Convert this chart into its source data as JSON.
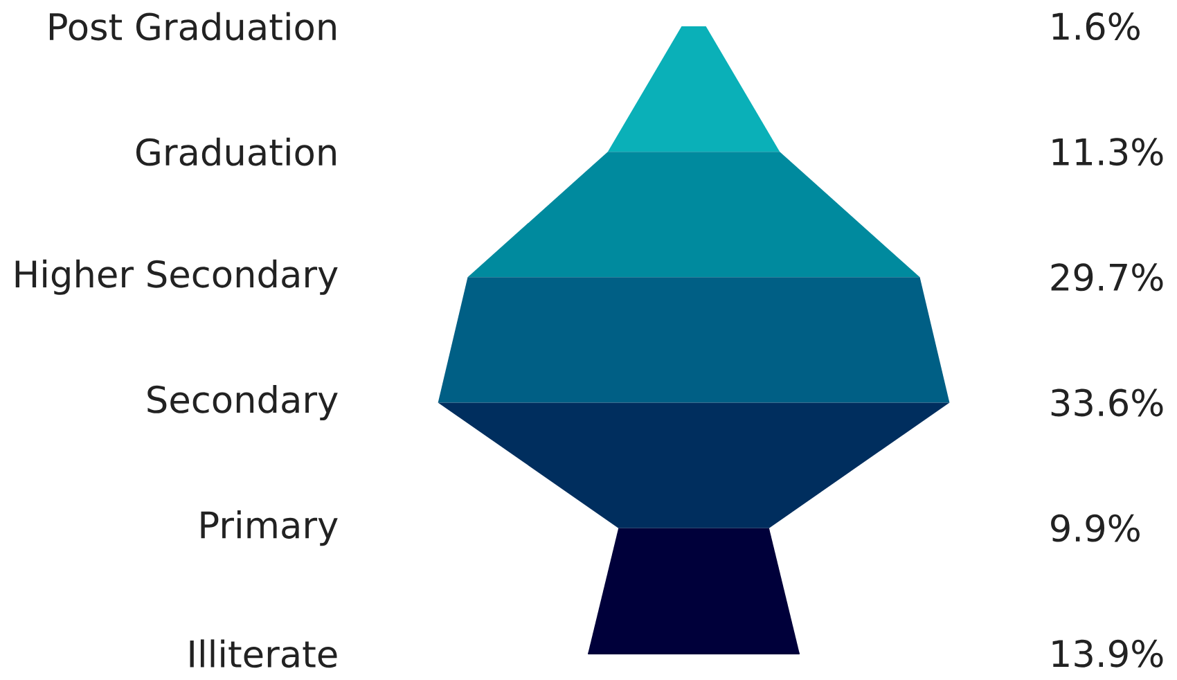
{
  "chart_data": {
    "type": "other",
    "categories": [
      "Post Graduation",
      "Graduation",
      "Higher Secondary",
      "Secondary",
      "Primary",
      "Illiterate"
    ],
    "values": [
      1.6,
      11.3,
      29.7,
      33.6,
      9.9,
      13.9
    ],
    "value_labels": [
      "1.6%",
      "11.3%",
      "29.7%",
      "33.6%",
      "9.9%",
      "13.9%"
    ],
    "colors": [
      "#0ab0b8",
      "#008a9e",
      "#005f85",
      "#002e5e",
      "#00003a",
      "#00003a"
    ]
  }
}
